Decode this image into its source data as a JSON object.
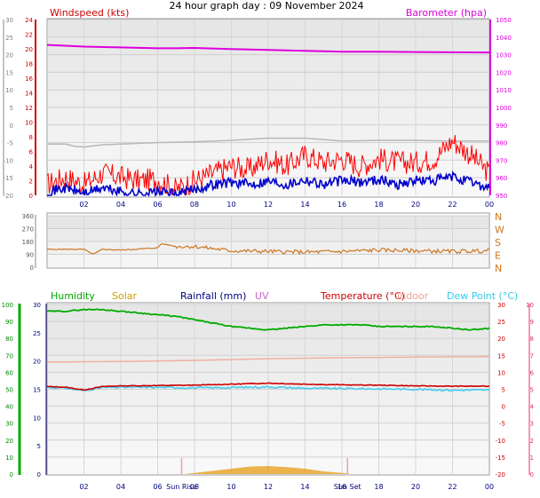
{
  "title": "24 hour graph day : 09 November 2024",
  "x_ticks": [
    "02",
    "04",
    "06",
    "08",
    "10",
    "12",
    "14",
    "16",
    "18",
    "20",
    "22",
    "00"
  ],
  "sun_labels": {
    "sunrise": "Sun Rise",
    "sunset": "Sun Set"
  },
  "colors": {
    "wind": "#cc0000",
    "gust": "#ff0000",
    "avgwind": "#0000cc",
    "baro": "#dd00dd",
    "gray": "#808080",
    "dir": "#cc7722",
    "hum": "#00aa00",
    "solar": "#e8a020",
    "rain": "#000080",
    "uv": "#cc66cc",
    "temp": "#cc0000",
    "indoor": "#f0b0a0",
    "dew": "#44ccee",
    "rightaxis": "#dd3377",
    "tempaxis": "#cc0000"
  },
  "chart_data": [
    {
      "type": "line",
      "panel": "wind_barometer",
      "legend": [
        "Windspeed (kts)",
        "Barometer (hpa)"
      ],
      "left_outer_ticks": [
        "30",
        "25",
        "20",
        "15",
        "10",
        "5",
        "0",
        "-5",
        "-10",
        "-15",
        "-20"
      ],
      "left_inner_ticks": [
        "24",
        "22",
        "20",
        "18",
        "16",
        "14",
        "12",
        "10",
        "8",
        "6",
        "4",
        "2",
        "0"
      ],
      "right_ticks": [
        "1050",
        "1040",
        "1030",
        "1020",
        "1010",
        "1000",
        "990",
        "980",
        "970",
        "960",
        "950"
      ],
      "ylim_wind": [
        0,
        25
      ],
      "ylim_baro": [
        948,
        1050
      ],
      "xlim_hours": [
        0,
        24
      ],
      "series": [
        {
          "name": "Barometer (hpa)",
          "x": [
            0,
            1,
            2,
            4,
            6,
            7,
            8,
            10,
            12,
            14,
            16,
            18,
            20,
            22,
            24
          ],
          "values": [
            1035,
            1034.5,
            1034,
            1033.5,
            1033,
            1033,
            1033.2,
            1032.5,
            1032,
            1031.5,
            1031,
            1031,
            1030.8,
            1030.6,
            1030.5
          ]
        },
        {
          "x": [
            0,
            1,
            1.5,
            2,
            3,
            4,
            6,
            8,
            10,
            12,
            14,
            16,
            18,
            20,
            22,
            24
          ],
          "values": [
            7,
            7,
            6.7,
            6.6,
            6.9,
            7,
            7.2,
            7.3,
            7.5,
            7.8,
            7.8,
            7.4,
            7.5,
            7.5,
            7.4,
            7.4
          ]
        },
        {
          "x": [
            0,
            1,
            2,
            3,
            4,
            5,
            6,
            7,
            8,
            9,
            10,
            11,
            12,
            13,
            14,
            15,
            16,
            17,
            18,
            19,
            20,
            21,
            22,
            23,
            24
          ],
          "values": [
            1.5,
            2.5,
            1.5,
            3,
            2.5,
            2,
            2.2,
            0.8,
            2,
            3,
            4,
            3.5,
            5,
            4,
            5.5,
            4.5,
            5,
            4,
            5,
            4.5,
            4.5,
            5,
            7.5,
            5.5,
            3
          ]
        },
        {
          "x": [
            0,
            1,
            2,
            3,
            4,
            5,
            6,
            7,
            8,
            9,
            10,
            11,
            12,
            13,
            14,
            15,
            16,
            17,
            18,
            19,
            20,
            21,
            22,
            23,
            24
          ],
          "values": [
            0.5,
            1,
            0.3,
            1,
            0.5,
            0.2,
            0.5,
            0.1,
            0.8,
            1.5,
            1.8,
            1.5,
            2,
            1.5,
            2.2,
            1.5,
            2,
            1.8,
            2.2,
            1.5,
            2,
            2,
            2.5,
            1.8,
            1
          ]
        }
      ]
    },
    {
      "type": "line",
      "panel": "wind_direction",
      "left_ticks": [
        "360",
        "270",
        "180",
        "90",
        "0"
      ],
      "right_ticks": [
        "N",
        "W",
        "S",
        "E",
        "N"
      ],
      "ylim": [
        0,
        360
      ],
      "xlim_hours": [
        0,
        24
      ],
      "series": [
        {
          "x": [
            0,
            1,
            2,
            2.5,
            3,
            4,
            6,
            6.2,
            7,
            8,
            9,
            10,
            12,
            14,
            16,
            18,
            20,
            22,
            24
          ],
          "values": [
            125,
            125,
            125,
            90,
            125,
            120,
            135,
            165,
            145,
            145,
            130,
            115,
            110,
            105,
            110,
            120,
            115,
            110,
            115
          ]
        }
      ]
    },
    {
      "type": "line",
      "panel": "humidity_temperature",
      "legend": [
        "Humidity",
        "Solar",
        "Rainfall (mm)",
        "UV",
        "Temperature (°C)",
        "Indoor",
        "Dew Point (°C)"
      ],
      "hum_ticks": [
        "100",
        "90",
        "80",
        "70",
        "60",
        "50",
        "40",
        "30",
        "20",
        "10",
        "0"
      ],
      "rain_ticks": [
        "30",
        "25",
        "20",
        "15",
        "10",
        "5",
        "0"
      ],
      "temp_outer_ticks": [
        "30",
        "25",
        "20",
        "15",
        "10",
        "5",
        "0",
        "-5",
        "-10",
        "-15",
        "-20"
      ],
      "temp_inner_ticks": [
        "10",
        "9",
        "8",
        "7",
        "6",
        "5",
        "4",
        "3",
        "2",
        "1",
        "0"
      ],
      "ylim_hum": [
        0,
        100
      ],
      "ylim_temp": [
        -20,
        30
      ],
      "xlim_hours": [
        0,
        24
      ],
      "series": [
        {
          "name": "Humidity",
          "x": [
            0,
            1,
            2,
            3,
            4,
            5,
            6,
            7,
            8,
            9,
            10,
            11,
            12,
            13,
            14,
            15,
            16,
            17,
            18,
            19,
            20,
            21,
            22,
            23,
            24
          ],
          "values": [
            96,
            96,
            97,
            97,
            96,
            95,
            94,
            93,
            91,
            89,
            87,
            86,
            85,
            86,
            87,
            88,
            88,
            88,
            87,
            87,
            87,
            87,
            86,
            85,
            86
          ]
        },
        {
          "name": "Temperature (°C)",
          "x": [
            0,
            1,
            2,
            3,
            4,
            6,
            8,
            10,
            12,
            14,
            16,
            18,
            20,
            22,
            24
          ],
          "values": [
            5.8,
            5.6,
            4.8,
            5.8,
            6,
            6.1,
            6.2,
            6.5,
            6.8,
            6.5,
            6.3,
            6.2,
            6,
            5.9,
            5.9
          ]
        },
        {
          "name": "Indoor",
          "x": [
            0,
            4,
            8,
            12,
            16,
            20,
            24
          ],
          "values": [
            13,
            13.2,
            13.5,
            14,
            14.3,
            14.5,
            14.6
          ]
        },
        {
          "name": "Dew Point (°C)",
          "x": [
            0,
            1,
            2,
            3,
            4,
            6,
            8,
            10,
            12,
            14,
            16,
            18,
            20,
            22,
            24
          ],
          "values": [
            5.6,
            5.3,
            4.6,
            5.5,
            5.6,
            5.6,
            5.4,
            5.5,
            5.7,
            5.3,
            5.2,
            5.1,
            5,
            4.7,
            4.8
          ]
        },
        {
          "name": "Solar",
          "x": [
            7.5,
            8,
            9,
            10,
            11,
            12,
            13,
            14,
            15,
            16,
            16.5
          ],
          "values": [
            0,
            0.2,
            0.6,
            1,
            1.4,
            1.5,
            1.3,
            1,
            0.5,
            0.2,
            0
          ]
        }
      ],
      "sunrise_hour": 7.3,
      "sunset_hour": 16.3
    }
  ]
}
